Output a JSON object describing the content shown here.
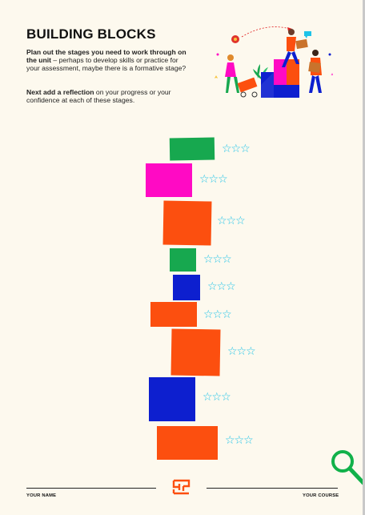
{
  "page": {
    "title": "BUILDING BLOCKS",
    "intro": {
      "bold": "Plan out the stages you need to work through on the unit",
      "text": " – perhaps to develop skills or practice for your assessment, maybe there is a formative stage?"
    },
    "reflection": {
      "bold": "Next add a reflection",
      "text": " on your progress or your confidence at each of these stages."
    }
  },
  "blocks": [
    {
      "color": "#17a84f",
      "stars": "☆☆☆"
    },
    {
      "color": "#ff0ac4",
      "stars": "☆☆☆"
    },
    {
      "color": "#fc4f0f",
      "stars": "☆☆☆"
    },
    {
      "color": "#17a84f",
      "stars": "☆☆☆"
    },
    {
      "color": "#0d1fcf",
      "stars": "☆☆☆"
    },
    {
      "color": "#fc4f0f",
      "stars": "☆☆☆"
    },
    {
      "color": "#fc4f0f",
      "stars": "☆☆☆"
    },
    {
      "color": "#0d1fcf",
      "stars": "☆☆☆"
    },
    {
      "color": "#fc4f0f",
      "stars": "☆☆☆"
    }
  ],
  "footer": {
    "left_label": "YOUR NAME",
    "right_label": "YOUR COURSE"
  },
  "icons": {
    "illustration": "people-building-blocks-illustration",
    "logo": "orange-maze-logo",
    "search": "search-icon"
  },
  "colors": {
    "orange": "#fc4f0f",
    "green": "#17a84f",
    "magenta": "#ff0ac4",
    "blue": "#0d1fcf",
    "star": "#1ec3e8",
    "search": "#11b14a"
  }
}
